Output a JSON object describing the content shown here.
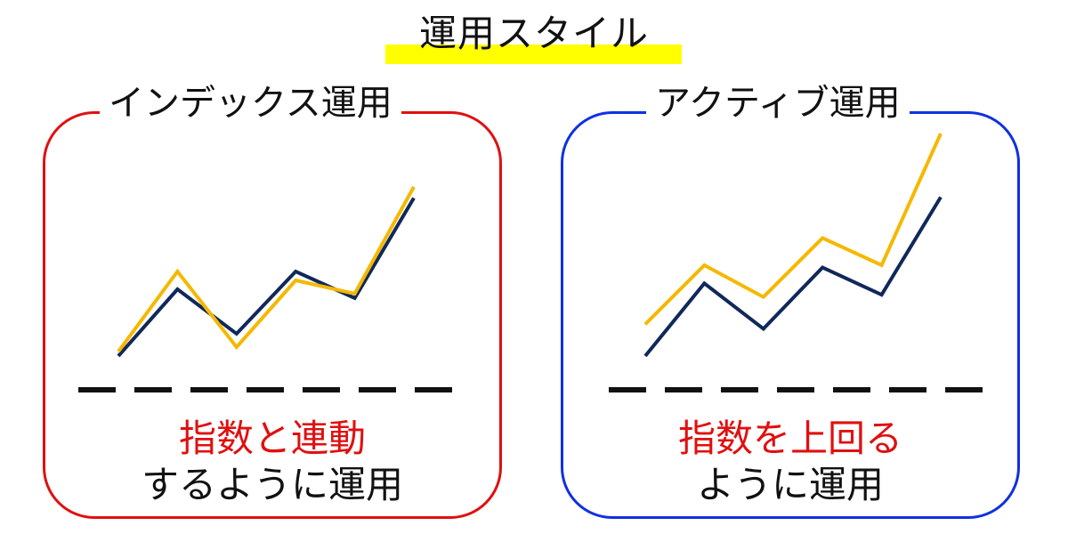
{
  "title": "運用スタイル",
  "colors": {
    "highlight": "#ffff00",
    "index_border": "#e01010",
    "active_border": "#1030e0",
    "line_index": "#10285a",
    "line_fund": "#f5b800",
    "accent_text": "#e01010"
  },
  "panels": {
    "index": {
      "heading": "インデックス運用",
      "caption_line1": "指数と連動",
      "caption_line2": "するように運用"
    },
    "active": {
      "heading": "アクティブ運用",
      "caption_line1": "指数を上回る",
      "caption_line2": "ように運用"
    }
  },
  "chart_data": [
    {
      "type": "line",
      "x": [
        0,
        1,
        2,
        3,
        4,
        5
      ],
      "series": [
        {
          "values": [
            0,
            3.0,
            1.0,
            3.8,
            2.6,
            7.1
          ]
        },
        {
          "values": [
            0.2,
            3.8,
            0.4,
            3.4,
            2.8,
            7.6
          ]
        }
      ]
    },
    {
      "type": "line",
      "x": [
        0,
        1,
        2,
        3,
        4,
        5
      ],
      "series": [
        {
          "values": [
            0,
            3.2,
            1.2,
            3.9,
            2.7,
            7.0
          ]
        },
        {
          "values": [
            1.4,
            4.0,
            2.6,
            5.2,
            4.0,
            9.8
          ]
        }
      ]
    }
  ]
}
